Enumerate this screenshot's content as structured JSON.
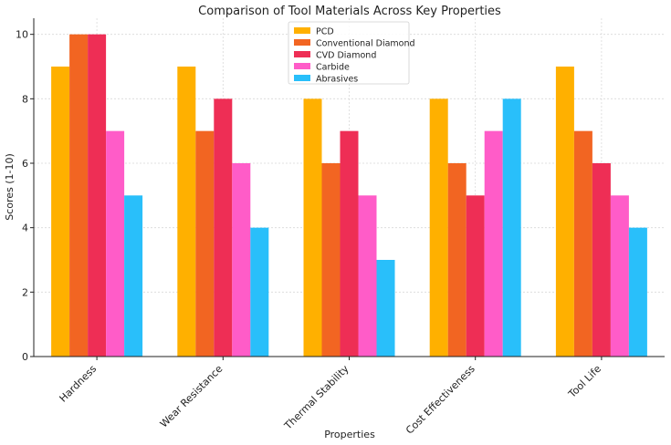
{
  "chart_data": {
    "type": "bar",
    "title": "Comparison of Tool Materials Across Key Properties",
    "xlabel": "Properties",
    "ylabel": "Scores (1-10)",
    "ylim": [
      0,
      10.5
    ],
    "yticks": [
      0,
      2,
      4,
      6,
      8,
      10
    ],
    "grid": true,
    "legend_position": "top-center",
    "categories": [
      "Hardness",
      "Wear Resistance",
      "Thermal Stability",
      "Cost Effectiveness",
      "Tool Life"
    ],
    "series": [
      {
        "name": "PCD",
        "color": "#FFB000",
        "values": [
          9,
          9,
          8,
          8,
          9
        ]
      },
      {
        "name": "Conventional Diamond",
        "color": "#F26522",
        "values": [
          10,
          7,
          6,
          6,
          7
        ]
      },
      {
        "name": "CVD Diamond",
        "color": "#EE2E55",
        "values": [
          10,
          8,
          7,
          5,
          6
        ]
      },
      {
        "name": "Carbide",
        "color": "#FF5CC8",
        "values": [
          7,
          6,
          5,
          7,
          5
        ]
      },
      {
        "name": "Abrasives",
        "color": "#29BFFA",
        "values": [
          5,
          4,
          3,
          8,
          4
        ]
      }
    ]
  }
}
